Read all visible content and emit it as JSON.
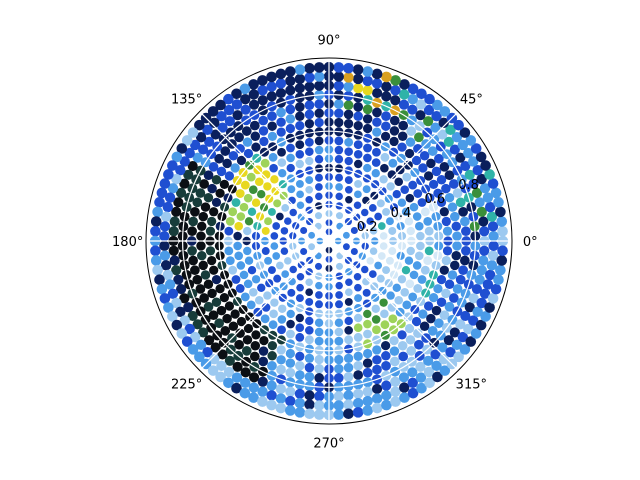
{
  "chart_data": {
    "type": "scatter",
    "projection": "polar",
    "title": "",
    "angular_ticks": [
      {
        "deg": 0,
        "label": "0°"
      },
      {
        "deg": 45,
        "label": "45°"
      },
      {
        "deg": 90,
        "label": "90°"
      },
      {
        "deg": 135,
        "label": "135°"
      },
      {
        "deg": 180,
        "label": "180°"
      },
      {
        "deg": 225,
        "label": "225°"
      },
      {
        "deg": 270,
        "label": "270°"
      },
      {
        "deg": 315,
        "label": "315°"
      }
    ],
    "radial_ticks": [
      {
        "r": 0.2,
        "label": "0.2"
      },
      {
        "r": 0.4,
        "label": "0.4"
      },
      {
        "r": 0.6,
        "label": "0.6"
      },
      {
        "r": 0.8,
        "label": "0.8"
      }
    ],
    "rlim": [
      0,
      1.0
    ],
    "radial_label_angle_deg": 22.5,
    "grid": true,
    "points": {
      "description_rings": [
        {
          "r": 0.05,
          "count": 4
        },
        {
          "r": 0.1,
          "count": 10
        },
        {
          "r": 0.15,
          "count": 16
        },
        {
          "r": 0.2,
          "count": 22
        },
        {
          "r": 0.25,
          "count": 28
        },
        {
          "r": 0.3,
          "count": 34
        },
        {
          "r": 0.35,
          "count": 40
        },
        {
          "r": 0.4,
          "count": 46
        },
        {
          "r": 0.45,
          "count": 52
        },
        {
          "r": 0.5,
          "count": 58
        },
        {
          "r": 0.55,
          "count": 64
        },
        {
          "r": 0.6,
          "count": 70
        },
        {
          "r": 0.65,
          "count": 76
        },
        {
          "r": 0.7,
          "count": 82
        },
        {
          "r": 0.75,
          "count": 88
        },
        {
          "r": 0.8,
          "count": 94
        },
        {
          "r": 0.85,
          "count": 100
        },
        {
          "r": 0.9,
          "count": 106
        },
        {
          "r": 0.95,
          "count": 112
        }
      ]
    },
    "palette": {
      "deep_navy": "#0a1f5c",
      "royal_blue": "#1f4fd1",
      "sky_blue": "#4a9be8",
      "light_blue": "#9cc9f0",
      "pale_blue": "#d4e8f7",
      "black": "#0b0f14",
      "dark_teal": "#173c3a",
      "yellow": "#e8d820",
      "lime": "#9ed35a",
      "green": "#3a8f3a",
      "teal": "#2fb3a8",
      "orange": "#d9a020"
    }
  }
}
